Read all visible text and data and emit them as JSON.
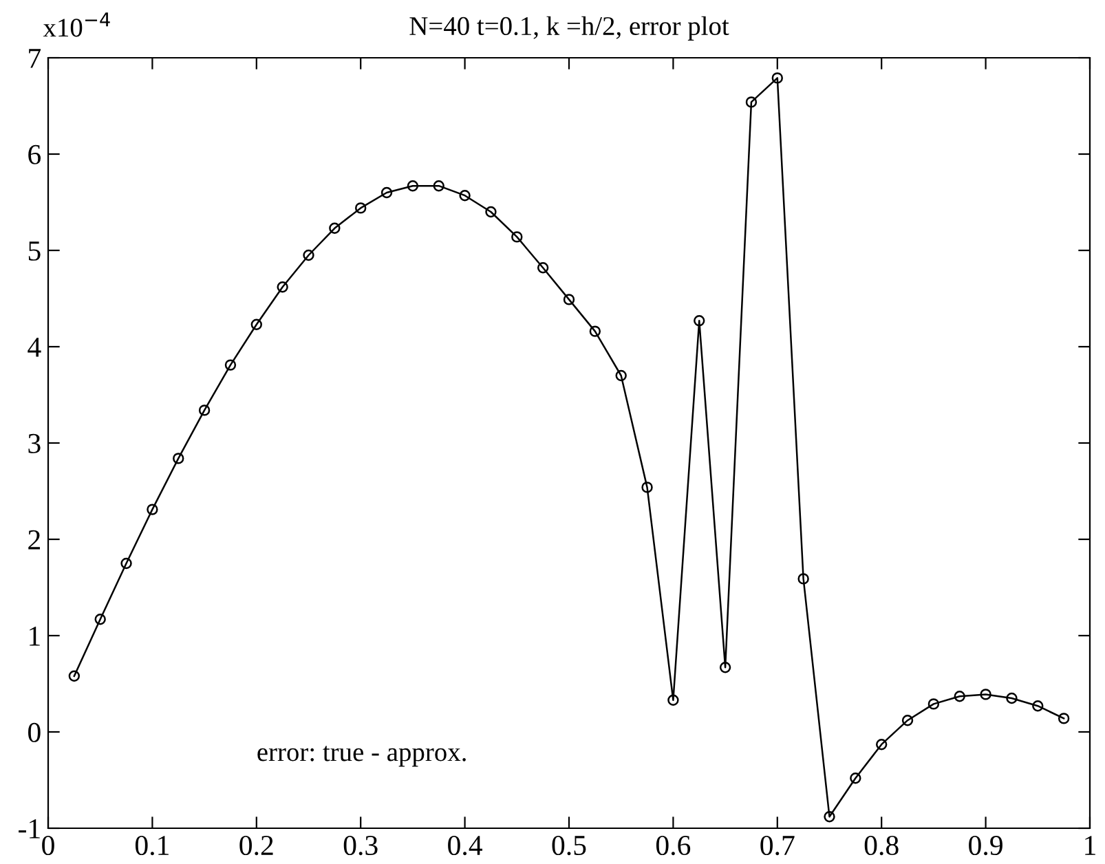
{
  "chart_data": {
    "type": "line",
    "title": "N=40 t=0.1, k =h/2, error plot",
    "x": [
      0.025,
      0.05,
      0.075,
      0.1,
      0.125,
      0.15,
      0.175,
      0.2,
      0.225,
      0.25,
      0.275,
      0.3,
      0.325,
      0.35,
      0.375,
      0.4,
      0.425,
      0.45,
      0.475,
      0.5,
      0.525,
      0.55,
      0.575,
      0.6,
      0.625,
      0.65,
      0.675,
      0.7,
      0.725,
      0.75,
      0.775,
      0.8,
      0.825,
      0.85,
      0.875,
      0.9,
      0.925,
      0.95,
      0.975
    ],
    "series": [
      {
        "color": "#000000",
        "values": [
          0.58,
          1.17,
          1.75,
          2.31,
          2.84,
          3.34,
          3.81,
          4.23,
          4.62,
          4.95,
          5.23,
          5.44,
          5.6,
          5.67,
          5.67,
          5.57,
          5.4,
          5.14,
          4.82,
          4.49,
          4.16,
          3.7,
          2.54,
          0.33,
          4.27,
          0.67,
          6.54,
          6.79,
          1.59,
          -0.88,
          -0.48,
          -0.13,
          0.12,
          0.29,
          0.37,
          0.39,
          0.35,
          0.27,
          0.14
        ]
      }
    ],
    "marker": "circle",
    "line_style": "solid",
    "grid": false,
    "legend": false,
    "xlim": [
      0,
      1
    ],
    "xticks": [
      0,
      0.1,
      0.2,
      0.3,
      0.4,
      0.5,
      0.6,
      0.7,
      0.8,
      0.9,
      1
    ],
    "ylim": [
      -1,
      7
    ],
    "yticks": [
      -1,
      0,
      1,
      2,
      3,
      4,
      5,
      6,
      7
    ],
    "annotations": [
      "x10$^{−4}$",
      "error: true - approx."
    ]
  }
}
